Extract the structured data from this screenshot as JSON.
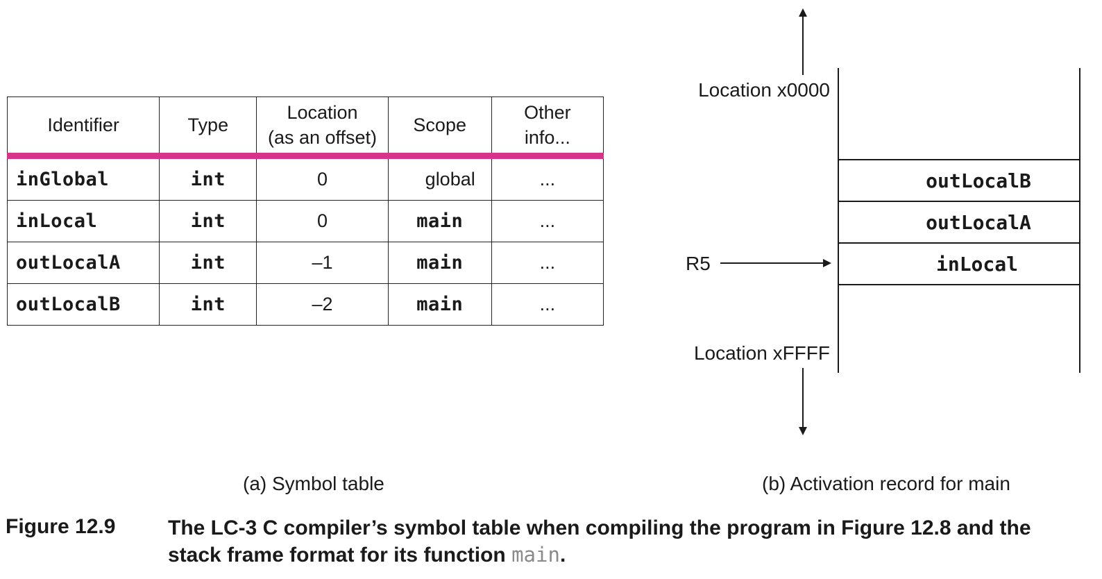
{
  "symbol_table": {
    "headers": [
      {
        "line1": "Identifier",
        "line2": ""
      },
      {
        "line1": "Type",
        "line2": ""
      },
      {
        "line1": "Location",
        "line2": "(as an offset)"
      },
      {
        "line1": "Scope",
        "line2": ""
      },
      {
        "line1": "Other",
        "line2": "info..."
      }
    ],
    "rows": [
      {
        "identifier": "inGlobal",
        "type": "int",
        "location": "0",
        "scope": "global",
        "other": "..."
      },
      {
        "identifier": "inLocal",
        "type": "int",
        "location": "0",
        "scope": "main",
        "other": "..."
      },
      {
        "identifier": "outLocalA",
        "type": "int",
        "location": "–1",
        "scope": "main",
        "other": "..."
      },
      {
        "identifier": "outLocalB",
        "type": "int",
        "location": "–2",
        "scope": "main",
        "other": "..."
      }
    ],
    "header_rule_color": "#d6338a"
  },
  "activation_record": {
    "top_label": "Location x0000",
    "bottom_label": "Location xFFFF",
    "pointer_label": "R5",
    "cells": [
      "outLocalB",
      "outLocalA",
      "inLocal"
    ]
  },
  "captions": {
    "a": "(a) Symbol table",
    "b": "(b) Activation record for main",
    "figure_label": "Figure 12.9",
    "figure_text_before": "The LC-3 C compiler’s symbol table when compiling the program in Figure 12.8 and the stack frame format for its function ",
    "figure_code": "main",
    "figure_text_after": "."
  }
}
